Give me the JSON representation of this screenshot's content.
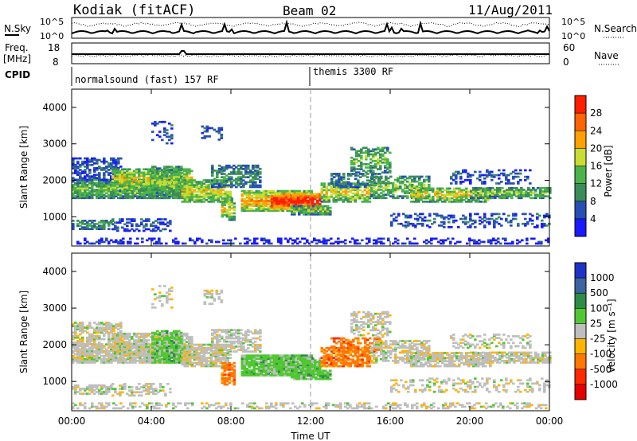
{
  "header": {
    "station": "Kodiak (fitACF)",
    "beam": "Beam 02",
    "date": "11/Aug/2011"
  },
  "noise_panel": {
    "left_label": "N.Sky",
    "right_label": "N.Search",
    "left_ticks": [
      "10^5",
      "10^0"
    ],
    "right_ticks": [
      "10^5",
      "10^0"
    ]
  },
  "freq_panel": {
    "left_label_1": "Freq.",
    "left_label_2": "[MHz]",
    "right_label": "Nave",
    "left_ticks": [
      "18",
      "8"
    ],
    "right_ticks": [
      "60",
      "0"
    ]
  },
  "cpid_panel": {
    "label": "CPID",
    "modes": [
      {
        "name": "normalsound (fast) 157 RF",
        "start_hour": 0
      },
      {
        "name": "themis 3300 RF",
        "start_hour": 12
      }
    ]
  },
  "chart_data": [
    {
      "type": "heatmap",
      "panel": "power",
      "ylabel": "Slant Range [km]",
      "xlabel": "",
      "x_ticks": [
        "00:00",
        "04:00",
        "08:00",
        "12:00",
        "16:00",
        "20:00",
        "00:00"
      ],
      "y_ticks": [
        "1000",
        "2000",
        "3000",
        "4000"
      ],
      "xlim_hours": [
        0,
        24
      ],
      "ylim_km": [
        200,
        4500
      ],
      "colorbar": {
        "label": "Power [dB]",
        "ticks": [
          "4",
          "8",
          "12",
          "16",
          "20",
          "24",
          "28"
        ],
        "colors": [
          "#1a1aff",
          "#2850b4",
          "#3c8c5a",
          "#4ab44a",
          "#c8dc32",
          "#ffa000",
          "#ff6400",
          "#ff1e00"
        ]
      }
    },
    {
      "type": "heatmap",
      "panel": "velocity",
      "ylabel": "Slant Range [km]",
      "xlabel": "Time UT",
      "x_ticks": [
        "00:00",
        "04:00",
        "08:00",
        "12:00",
        "16:00",
        "20:00",
        "00:00"
      ],
      "y_ticks": [
        "1000",
        "2000",
        "3000",
        "4000"
      ],
      "xlim_hours": [
        0,
        24
      ],
      "ylim_km": [
        200,
        4500
      ],
      "colorbar": {
        "label": "Velocity [m s⁻¹]",
        "ticks": [
          "1000",
          "500",
          "100",
          "25",
          "-25",
          "-100",
          "-500",
          "-1000"
        ],
        "colors": [
          "#1e32c8",
          "#3c64a0",
          "#2e8c46",
          "#50c832",
          "#bebebe",
          "#ffb400",
          "#ff7800",
          "#ff2800",
          "#e60000"
        ]
      }
    }
  ]
}
